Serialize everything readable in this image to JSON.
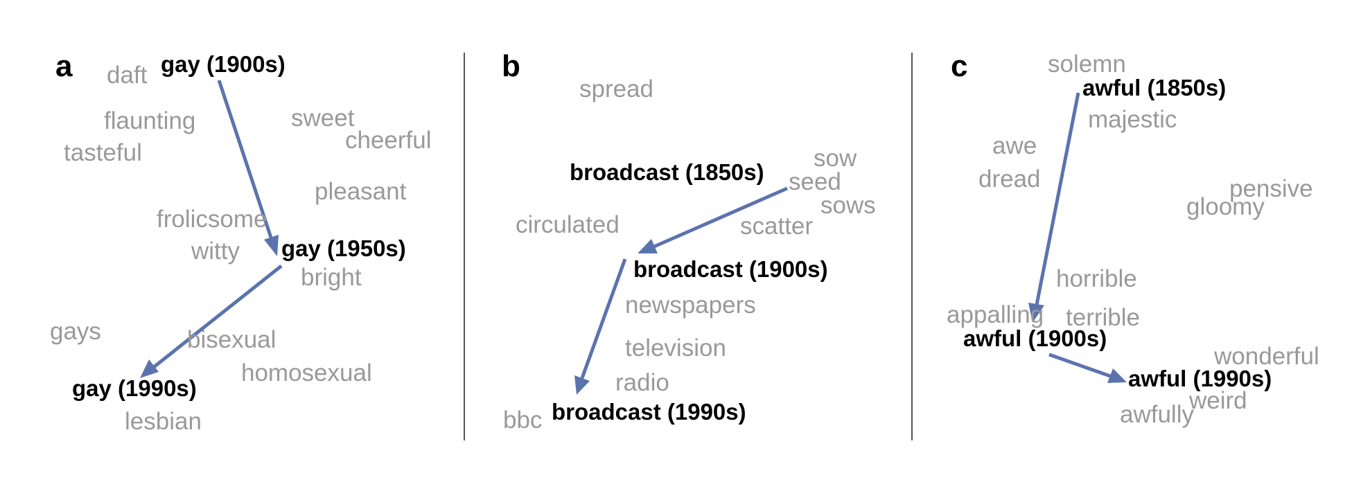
{
  "panels": [
    {
      "letter": "a",
      "focus_words": [
        "gay (1900s)",
        "gay (1950s)",
        "gay (1990s)"
      ],
      "neighbors": [
        "daft",
        "flaunting",
        "tasteful",
        "sweet",
        "cheerful",
        "pleasant",
        "frolicsome",
        "witty",
        "bright",
        "gays",
        "bisexual",
        "homosexual",
        "lesbian"
      ]
    },
    {
      "letter": "b",
      "focus_words": [
        "broadcast (1850s)",
        "broadcast (1900s)",
        "broadcast (1990s)"
      ],
      "neighbors": [
        "spread",
        "sow",
        "seed",
        "sows",
        "circulated",
        "scatter",
        "newspapers",
        "television",
        "radio",
        "bbc"
      ]
    },
    {
      "letter": "c",
      "focus_words": [
        "awful (1850s)",
        "awful (1900s)",
        "awful (1990s)"
      ],
      "neighbors": [
        "solemn",
        "majestic",
        "awe",
        "dread",
        "pensive",
        "gloomy",
        "horrible",
        "appalling",
        "terrible",
        "wonderful",
        "weird",
        "awfully"
      ]
    }
  ],
  "colors": {
    "focus": "#000000",
    "neighbor": "#999999",
    "arrow": "#5b73ad",
    "divider": "#555555"
  }
}
